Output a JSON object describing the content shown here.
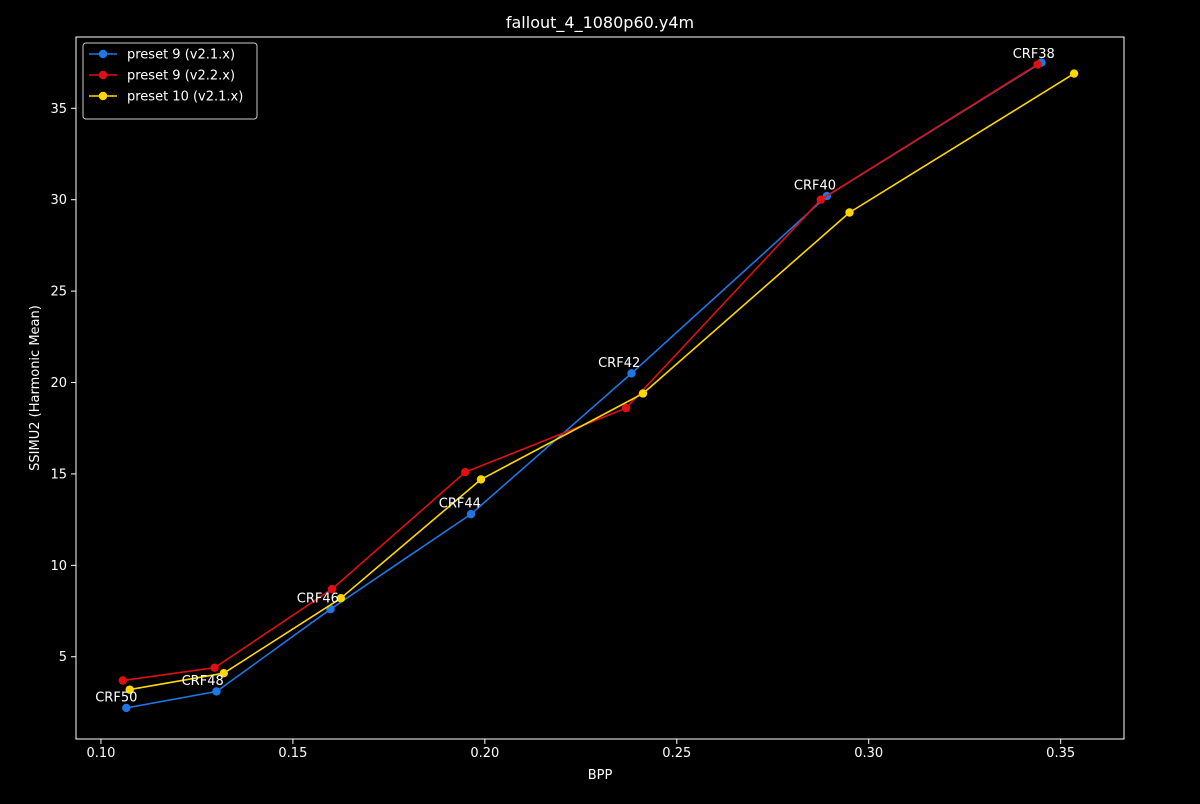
{
  "chart_data": {
    "type": "line",
    "title": "fallout_4_1080p60.y4m",
    "xlabel": "BPP",
    "ylabel": "SSIMU2 (Harmonic Mean)",
    "xlim": [
      0.0935,
      0.3665
    ],
    "ylim": [
      0.5,
      38.9
    ],
    "xticks": [
      0.1,
      0.15,
      0.2,
      0.25,
      0.3,
      0.35
    ],
    "xtick_labels": [
      "0.10",
      "0.15",
      "0.20",
      "0.25",
      "0.30",
      "0.35"
    ],
    "yticks": [
      5,
      10,
      15,
      20,
      25,
      30,
      35
    ],
    "ytick_labels": [
      "5",
      "10",
      "15",
      "20",
      "25",
      "30",
      "35"
    ],
    "grid": false,
    "legend_position": "top-left",
    "background": "#000000",
    "foreground": "#ffffff",
    "series": [
      {
        "name": "preset 9 (v2.1.x)",
        "color": "#1f77e6",
        "x": [
          0.1066,
          0.1301,
          0.1598,
          0.1964,
          0.2382,
          0.2891,
          0.345
        ],
        "y": [
          2.2,
          3.1,
          7.6,
          12.8,
          20.5,
          30.2,
          37.5
        ]
      },
      {
        "name": "preset 9 (v2.2.x)",
        "color": "#e01010",
        "x": [
          0.1057,
          0.1296,
          0.1602,
          0.1949,
          0.2368,
          0.2875,
          0.344
        ],
        "y": [
          3.7,
          4.4,
          8.7,
          15.1,
          18.6,
          30.0,
          37.4
        ]
      },
      {
        "name": "preset 10 (v2.1.x)",
        "color": "#ffd700",
        "x": [
          0.1075,
          0.132,
          0.1625,
          0.199,
          0.2412,
          0.295,
          0.3535
        ],
        "y": [
          3.2,
          4.1,
          8.2,
          14.7,
          19.4,
          29.3,
          36.9
        ]
      }
    ],
    "annotations": [
      {
        "text": "CRF38",
        "x": 0.343,
        "y": 38.0
      },
      {
        "text": "CRF40",
        "x": 0.286,
        "y": 30.8
      },
      {
        "text": "CRF42",
        "x": 0.235,
        "y": 21.1
      },
      {
        "text": "CRF44",
        "x": 0.1935,
        "y": 13.4
      },
      {
        "text": "CRF46",
        "x": 0.1565,
        "y": 8.2
      },
      {
        "text": "CRF48",
        "x": 0.1265,
        "y": 3.7
      },
      {
        "text": "CRF50",
        "x": 0.104,
        "y": 2.8
      }
    ]
  }
}
